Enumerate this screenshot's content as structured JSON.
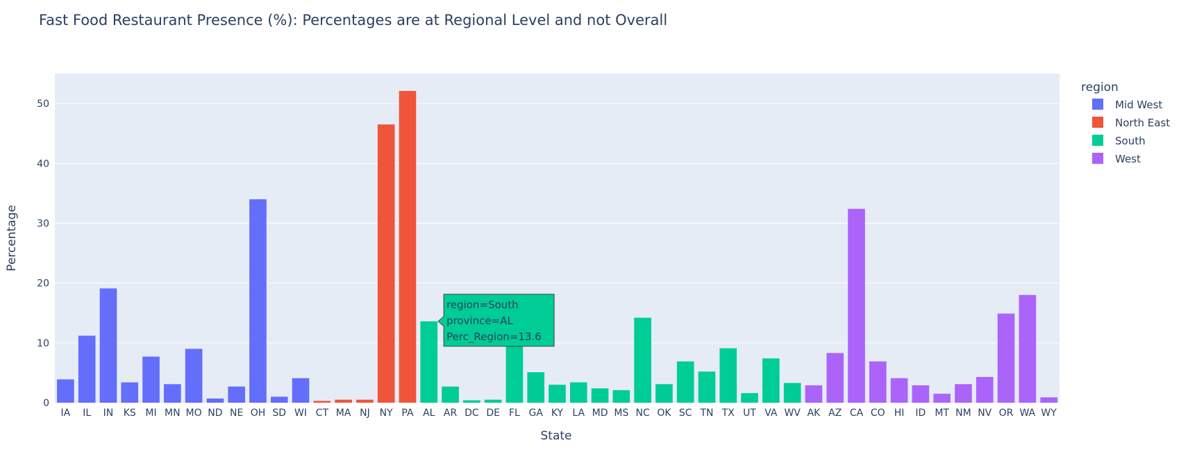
{
  "chart_data": {
    "type": "bar",
    "title": "Fast Food Restaurant Presence (%): Percentages are at Regional Level and not Overall",
    "xlabel": "State",
    "ylabel": "Percentage",
    "ylim": [
      0,
      55
    ],
    "yticks": [
      0,
      10,
      20,
      30,
      40,
      50
    ],
    "grid": true,
    "legend": {
      "title": "region",
      "placement": "top-right"
    },
    "series": [
      {
        "name": "Mid West",
        "color": "#636efa",
        "categories": [
          "IA",
          "IL",
          "IN",
          "KS",
          "MI",
          "MN",
          "MO",
          "ND",
          "NE",
          "OH",
          "SD",
          "WI"
        ],
        "values": [
          3.9,
          11.2,
          19.1,
          3.4,
          7.7,
          3.1,
          9.0,
          0.7,
          2.7,
          34.0,
          1.0,
          4.1
        ]
      },
      {
        "name": "North East",
        "color": "#ef553b",
        "categories": [
          "CT",
          "MA",
          "NJ",
          "NY",
          "PA"
        ],
        "values": [
          0.3,
          0.5,
          0.5,
          46.5,
          52.1
        ]
      },
      {
        "name": "South",
        "color": "#00cc96",
        "categories": [
          "AL",
          "AR",
          "DC",
          "DE",
          "FL",
          "GA",
          "KY",
          "LA",
          "MD",
          "MS",
          "NC",
          "OK",
          "SC",
          "TN",
          "TX",
          "UT",
          "VA",
          "WV"
        ],
        "values": [
          13.6,
          2.7,
          0.4,
          0.5,
          10.8,
          5.1,
          3.0,
          3.4,
          2.4,
          2.1,
          14.2,
          3.1,
          6.9,
          5.2,
          9.1,
          1.6,
          7.4,
          3.3
        ]
      },
      {
        "name": "West",
        "color": "#ab63fa",
        "categories": [
          "AK",
          "AZ",
          "CA",
          "CO",
          "HI",
          "ID",
          "MT",
          "NM",
          "NV",
          "OR",
          "WA",
          "WY"
        ],
        "values": [
          2.9,
          8.3,
          32.4,
          6.9,
          4.1,
          2.9,
          1.5,
          3.1,
          4.3,
          14.9,
          18.0,
          0.9
        ]
      }
    ],
    "tooltip": {
      "category": "AL",
      "lines": [
        "region=South",
        "province=AL",
        "Perc_Region=13.6"
      ]
    }
  }
}
